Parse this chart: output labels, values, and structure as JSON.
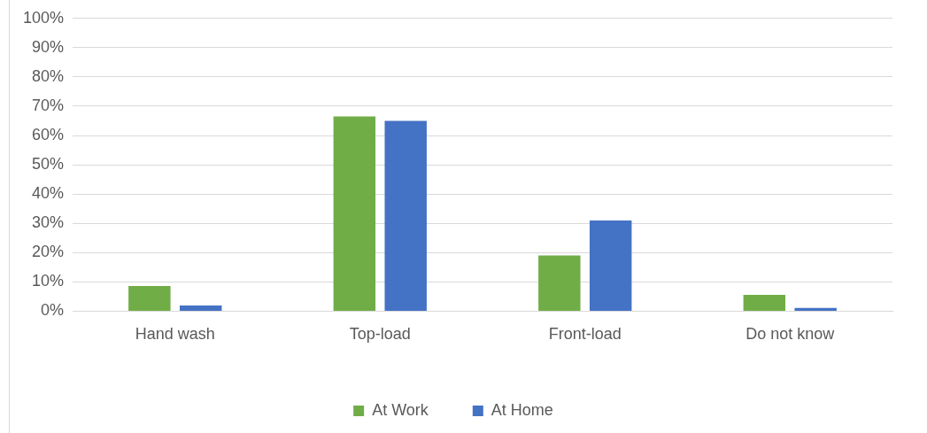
{
  "chart_data": {
    "type": "bar",
    "categories": [
      "Hand wash",
      "Top-load",
      "Front-load",
      "Do not know"
    ],
    "series": [
      {
        "name": "At Work",
        "color": "#70ad47",
        "values": [
          8.6,
          66.5,
          19,
          5.6
        ]
      },
      {
        "name": "At Home",
        "color": "#4472c4",
        "values": [
          1.9,
          65,
          31,
          1.1
        ]
      }
    ],
    "ylim": [
      0,
      100
    ],
    "yticks": [
      {
        "value": 0,
        "label": "0%"
      },
      {
        "value": 10,
        "label": "10%"
      },
      {
        "value": 20,
        "label": "20%"
      },
      {
        "value": 30,
        "label": "30%"
      },
      {
        "value": 40,
        "label": "40%"
      },
      {
        "value": 50,
        "label": "50%"
      },
      {
        "value": 60,
        "label": "60%"
      },
      {
        "value": 70,
        "label": "70%"
      },
      {
        "value": 80,
        "label": "80%"
      },
      {
        "value": 90,
        "label": "90%"
      },
      {
        "value": 100,
        "label": "100%"
      }
    ],
    "grid": "y",
    "legend": "bottom"
  }
}
